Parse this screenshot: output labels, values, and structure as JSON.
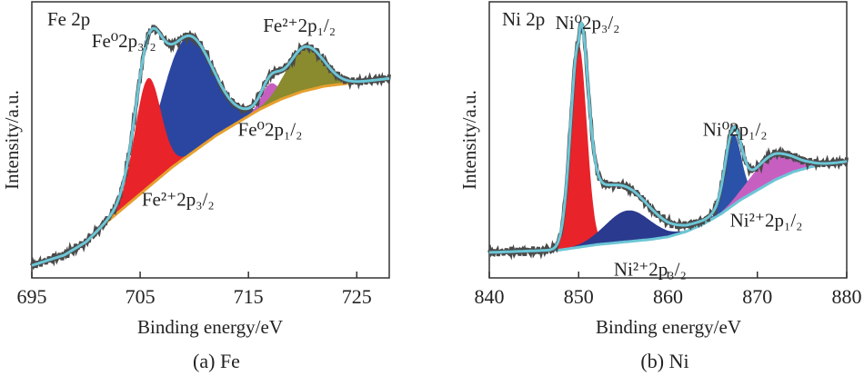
{
  "figure": {
    "caption_a": "(a) Fe",
    "caption_b": "(b) Ni"
  },
  "chart_data": [
    {
      "type": "line",
      "panel_label": "Fe 2p",
      "xlabel": "Binding energy/eV",
      "ylabel": "Intensity/a.u.",
      "xlim": [
        695,
        728
      ],
      "x_ticks": [
        695,
        705,
        715,
        725
      ],
      "x_tick_labels": [
        "695",
        "705",
        "715",
        "725"
      ],
      "ylim": [
        0,
        1
      ],
      "colors": {
        "raw": "#4a4a4a",
        "fit": "#6cc6d6",
        "background": "#e6a02e",
        "fe0_2p32": "#e8232a",
        "fe2_2p32": "#2a46a0",
        "fe0_2p12": "#c75fc1",
        "fe2_2p12": "#8a8a2e"
      },
      "background_curve": {
        "x": [
          695,
          698,
          700,
          702,
          704,
          706,
          708,
          710,
          712,
          714,
          716,
          718,
          720,
          722,
          724,
          726,
          728
        ],
        "y": [
          0.02,
          0.06,
          0.11,
          0.19,
          0.26,
          0.33,
          0.4,
          0.46,
          0.52,
          0.57,
          0.62,
          0.66,
          0.69,
          0.71,
          0.72,
          0.73,
          0.74
        ]
      },
      "components": [
        {
          "label": "Fe²⁺2p₃/₂",
          "color_key": "fe2_2p32",
          "center": 709.2,
          "height": 0.46,
          "sigma": 2.4
        },
        {
          "label": "Fe⁰2p₃/₂",
          "color_key": "fe0_2p32",
          "center": 705.7,
          "height": 0.42,
          "sigma": 1.2
        },
        {
          "label": "Fe⁰2p₁/₂",
          "color_key": "fe0_2p12",
          "center": 717.0,
          "height": 0.08,
          "sigma": 0.8
        },
        {
          "label": "Fe²⁺2p₁/₂",
          "color_key": "fe2_2p12",
          "center": 720.2,
          "height": 0.17,
          "sigma": 1.7
        }
      ],
      "annotations": [
        {
          "text": "Fe⁰2p₃/₂",
          "near_x": 703.5,
          "near_y": 0.86
        },
        {
          "text": "Fe²⁺2p₃/₂",
          "near_x": 708.5,
          "near_y": 0.25
        },
        {
          "text": "Fe⁰2p₁/₂",
          "near_x": 717.0,
          "near_y": 0.52
        },
        {
          "text": "Fe²⁺2p₁/₂",
          "near_x": 719.7,
          "near_y": 0.92
        }
      ],
      "raw_noise_amp": 0.012
    },
    {
      "type": "line",
      "panel_label": "Ni 2p",
      "xlabel": "Binding energy/eV",
      "ylabel": "Intensity/a.u.",
      "xlim": [
        840,
        880
      ],
      "x_ticks": [
        840,
        850,
        860,
        870,
        880
      ],
      "x_tick_labels": [
        "840",
        "850",
        "860",
        "870",
        "880"
      ],
      "ylim": [
        0,
        1
      ],
      "colors": {
        "raw": "#4a4a4a",
        "fit": "#6cc6d6",
        "background": "#6cc6d6",
        "ni0_2p32": "#e8232a",
        "ni2_2p32": "#2a3a8e",
        "ni0_2p12": "#2a52a8",
        "ni2_2p12": "#c75fc1"
      },
      "background_curve": {
        "x": [
          840,
          844,
          848,
          850,
          852,
          855,
          858,
          860,
          862,
          864,
          866,
          868,
          870,
          872,
          874,
          876,
          878,
          880
        ],
        "y": [
          0.07,
          0.075,
          0.08,
          0.09,
          0.1,
          0.11,
          0.12,
          0.13,
          0.15,
          0.18,
          0.22,
          0.27,
          0.31,
          0.35,
          0.38,
          0.4,
          0.41,
          0.42
        ]
      },
      "components": [
        {
          "label": "Ni⁰2p₃/₂",
          "color_key": "ni0_2p32",
          "center": 850.0,
          "height": 0.78,
          "sigma": 0.9
        },
        {
          "label": "Ni²⁺2p₃/₂",
          "color_key": "ni2_2p32",
          "center": 855.5,
          "height": 0.12,
          "sigma": 2.5
        },
        {
          "label": "Ni⁰2p₁/₂",
          "color_key": "ni0_2p12",
          "center": 867.3,
          "height": 0.27,
          "sigma": 0.9
        },
        {
          "label": "Ni²⁺2p₁/₂",
          "color_key": "ni2_2p12",
          "center": 871.5,
          "height": 0.1,
          "sigma": 2.4
        }
      ],
      "tail": {
        "center": 850.0,
        "height": 0.3,
        "decay": 4.5
      },
      "annotations": [
        {
          "text": "Ni⁰2p₃/₂",
          "near_x": 851.0,
          "near_y": 0.93
        },
        {
          "text": "Ni⁰2p₁/₂",
          "near_x": 867.5,
          "near_y": 0.52
        },
        {
          "text": "Ni²⁺2p₁/₂",
          "near_x": 871.0,
          "near_y": 0.17
        },
        {
          "text": "Ni²⁺2p₃/₂",
          "near_x": 858.0,
          "near_y": -0.02
        }
      ],
      "raw_noise_amp": 0.012
    }
  ]
}
